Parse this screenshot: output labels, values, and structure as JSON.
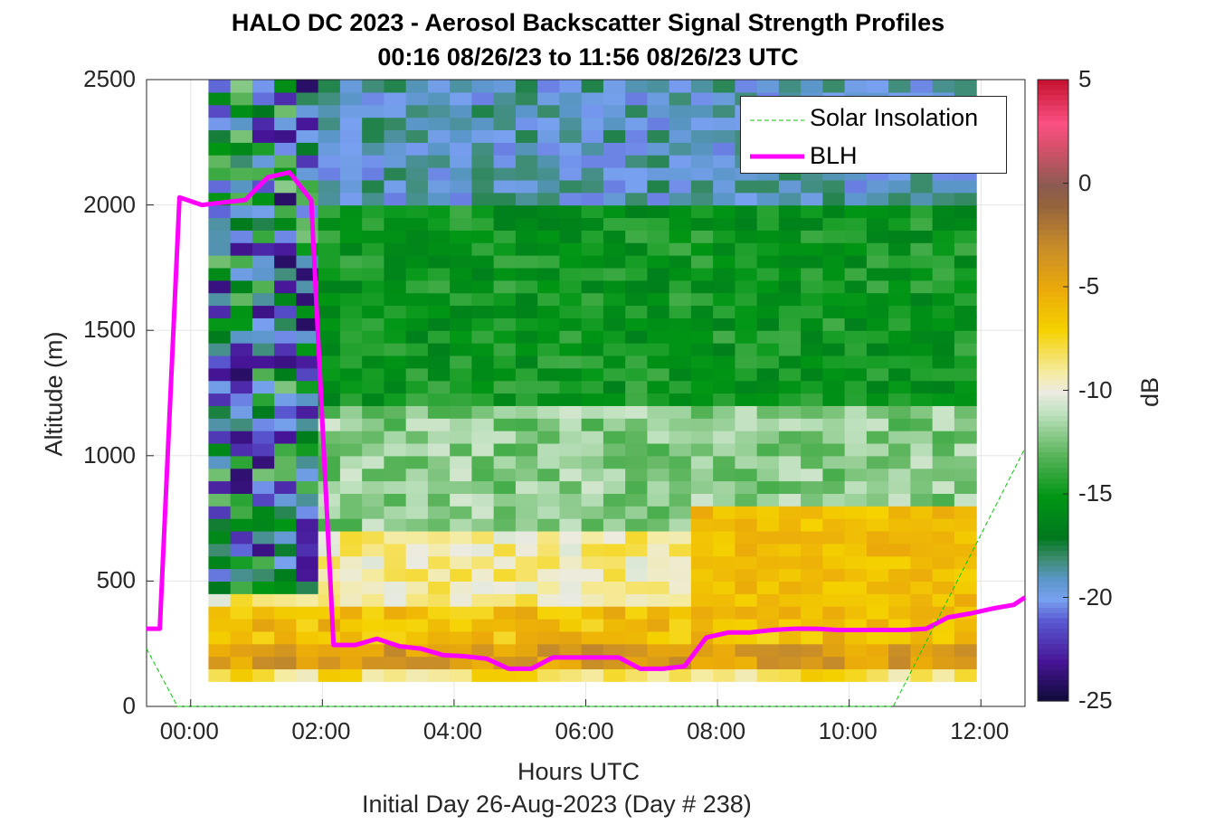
{
  "title_line1": "HALO DC 2023 - Aerosol Backscatter Signal Strength Profiles",
  "title_line2": "00:16 08/26/23 to 11:56 08/26/23  UTC",
  "xlabel": "Hours UTC",
  "xlabel2": "Initial Day 26-Aug-2023 (Day # 238)",
  "ylabel": "Altitude (m)",
  "colorbar_label": "dB",
  "xticks": [
    "00:00",
    "02:00",
    "04:00",
    "06:00",
    "08:00",
    "10:00",
    "12:00"
  ],
  "yticks": [
    "0",
    "500",
    "1000",
    "1500",
    "2000",
    "2500"
  ],
  "cticks": [
    "5",
    "0",
    "-5",
    "-10",
    "-15",
    "-20",
    "-25"
  ],
  "legend": {
    "solar": "Solar Insolation",
    "blh": "BLH"
  },
  "colors": {
    "blh": "#ff00ff",
    "solar": "#00cc00",
    "axis": "#262626"
  },
  "chart_data": {
    "type": "heatmap",
    "title": "HALO DC 2023 - Aerosol Backscatter Signal Strength Profiles",
    "subtitle": "00:16 08/26/23 to 11:56 08/26/23  UTC",
    "xlabel": "Hours UTC",
    "ylabel": "Altitude (m)",
    "colorbar": {
      "label": "dB",
      "range": [
        -25,
        5
      ]
    },
    "xlim": [
      -0.67,
      12.67
    ],
    "ylim": [
      0,
      2500
    ],
    "grid": true,
    "legend_position": "top-right",
    "heatmap_x_hours": [
      0.27,
      11.93
    ],
    "heatmap_y_alt": [
      100,
      2500
    ],
    "bands": [
      {
        "alt": [
          100,
          150
        ],
        "db": -8
      },
      {
        "alt": [
          150,
          250
        ],
        "db": -4
      },
      {
        "alt": [
          250,
          400
        ],
        "db": -6
      },
      {
        "alt": [
          400,
          700
        ],
        "db": -9
      },
      {
        "alt": [
          700,
          1200
        ],
        "db": -12
      },
      {
        "alt": [
          1200,
          2000
        ],
        "db": -15
      },
      {
        "alt": [
          2000,
          2500
        ],
        "db": -19
      }
    ],
    "series": [
      {
        "name": "BLH",
        "x": [
          -0.67,
          -0.47,
          -0.17,
          0.17,
          0.5,
          0.83,
          1.17,
          1.5,
          1.83,
          2.17,
          2.5,
          2.83,
          3.17,
          3.5,
          3.83,
          4.17,
          4.5,
          4.83,
          5.17,
          5.5,
          5.83,
          6.17,
          6.5,
          6.83,
          7.17,
          7.5,
          7.83,
          8.17,
          8.5,
          8.83,
          9.17,
          9.5,
          9.83,
          10.17,
          10.5,
          10.83,
          11.17,
          11.5,
          11.83,
          12.17,
          12.5,
          12.67
        ],
        "y": [
          310,
          310,
          2030,
          2000,
          2010,
          2020,
          2110,
          2130,
          2020,
          245,
          245,
          270,
          240,
          230,
          205,
          200,
          190,
          150,
          150,
          195,
          195,
          195,
          195,
          150,
          150,
          160,
          275,
          295,
          295,
          305,
          310,
          310,
          305,
          305,
          305,
          305,
          310,
          355,
          370,
          390,
          405,
          435
        ]
      },
      {
        "name": "Solar Insolation",
        "x": [
          -0.67,
          -0.2,
          10.67,
          12.67
        ],
        "y": [
          230,
          0,
          0,
          1030
        ]
      }
    ]
  }
}
